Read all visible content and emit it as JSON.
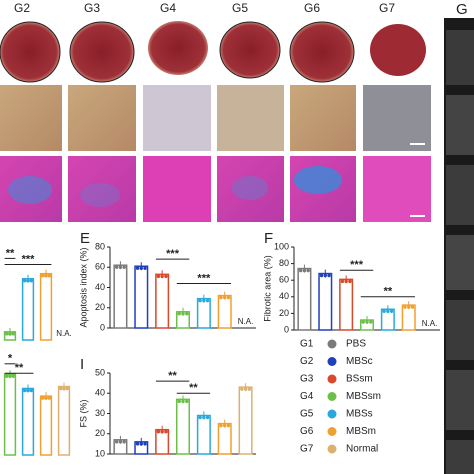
{
  "panel_labels": {
    "G": "G",
    "top_groups": [
      "G2",
      "G3",
      "G4",
      "G5",
      "G6",
      "G7"
    ]
  },
  "legend": {
    "items": [
      {
        "id": "G1",
        "name": "PBS",
        "color": "#7a7a7a"
      },
      {
        "id": "G2",
        "name": "MBSc",
        "color": "#1f3fbf"
      },
      {
        "id": "G3",
        "name": "BSsm",
        "color": "#d9482a"
      },
      {
        "id": "G4",
        "name": "MBSsm",
        "color": "#6cc04a"
      },
      {
        "id": "G5",
        "name": "MBSs",
        "color": "#2aa8dc"
      },
      {
        "id": "G6",
        "name": "MBSm",
        "color": "#f0a030"
      },
      {
        "id": "G7",
        "name": "Normal",
        "color": "#ddb070"
      }
    ]
  },
  "chart_data": [
    {
      "type": "bar",
      "colors": [
        "#6cc04a",
        "#2aa8dc",
        "#f0a030",
        "#ddb070"
      ],
      "values": [
        8,
        60,
        65,
        null
      ],
      "ylim": [
        0,
        100
      ],
      "na_label": "N.A.",
      "annotations": [
        {
          "text": "**",
          "from": 0,
          "to": 0,
          "y": 80
        },
        {
          "text": "***",
          "from": 0,
          "to": 2,
          "y": 74
        }
      ]
    },
    {
      "type": "bar",
      "colors": [
        "#6cc04a",
        "#2aa8dc",
        "#f0a030",
        "#ddb070"
      ],
      "values": [
        85,
        70,
        62,
        72
      ],
      "ylim": [
        0,
        100
      ],
      "annotations": [
        {
          "text": "*",
          "from": 0,
          "to": 0,
          "y": 96
        },
        {
          "text": "**",
          "from": 0,
          "to": 1,
          "y": 86
        }
      ]
    },
    {
      "type": "bar",
      "letter": "E",
      "ylabel": "Apoptosis index (%)",
      "colors": [
        "#7a7a7a",
        "#1f3fbf",
        "#d9482a",
        "#6cc04a",
        "#2aa8dc",
        "#f0a030",
        "#ddb070"
      ],
      "values": [
        62,
        61,
        53,
        16,
        29,
        32,
        null
      ],
      "ylim": [
        0,
        80
      ],
      "yticks": [
        0,
        20,
        40,
        60,
        80
      ],
      "na_label": "N.A.",
      "annotations": [
        {
          "text": "***",
          "from": 2,
          "to": 3,
          "y": 68
        },
        {
          "text": "***",
          "from": 3,
          "to": 5,
          "y": 44
        }
      ]
    },
    {
      "type": "bar",
      "letter": "F",
      "ylabel": "Fibrotic area (%)",
      "colors": [
        "#7a7a7a",
        "#1f3fbf",
        "#d9482a",
        "#6cc04a",
        "#2aa8dc",
        "#f0a030",
        "#ddb070"
      ],
      "values": [
        74,
        68,
        61,
        12,
        25,
        30,
        null
      ],
      "ylim": [
        0,
        100
      ],
      "yticks": [
        0,
        20,
        40,
        60,
        80,
        100
      ],
      "na_label": "N.A.",
      "annotations": [
        {
          "text": "***",
          "from": 2,
          "to": 3,
          "y": 72
        },
        {
          "text": "**",
          "from": 3,
          "to": 5,
          "y": 40
        }
      ]
    },
    {
      "type": "bar",
      "letter": "I",
      "ylabel": "FS (%)",
      "colors": [
        "#7a7a7a",
        "#1f3fbf",
        "#d9482a",
        "#6cc04a",
        "#2aa8dc",
        "#f0a030",
        "#ddb070"
      ],
      "values": [
        17,
        16,
        22,
        37,
        29,
        25,
        43
      ],
      "ylim": [
        10,
        50
      ],
      "yticks": [
        10,
        20,
        30,
        40,
        50
      ],
      "annotations": [
        {
          "text": "**",
          "from": 2,
          "to": 3,
          "y": 46
        },
        {
          "text": "**",
          "from": 3,
          "to": 4,
          "y": 40
        }
      ]
    }
  ]
}
